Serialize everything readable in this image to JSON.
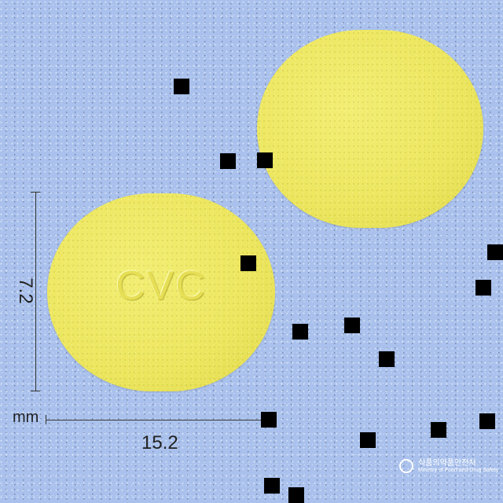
{
  "tablet": {
    "imprint": "CVC",
    "color": "#ece65f"
  },
  "dimensions": {
    "height": "7.2",
    "width": "15.2",
    "unit": "mm"
  },
  "watermark": {
    "korean": "식품의약품안전처",
    "english": "Ministry of Food and Drug Safety"
  },
  "background_color": "#a9c1ec"
}
